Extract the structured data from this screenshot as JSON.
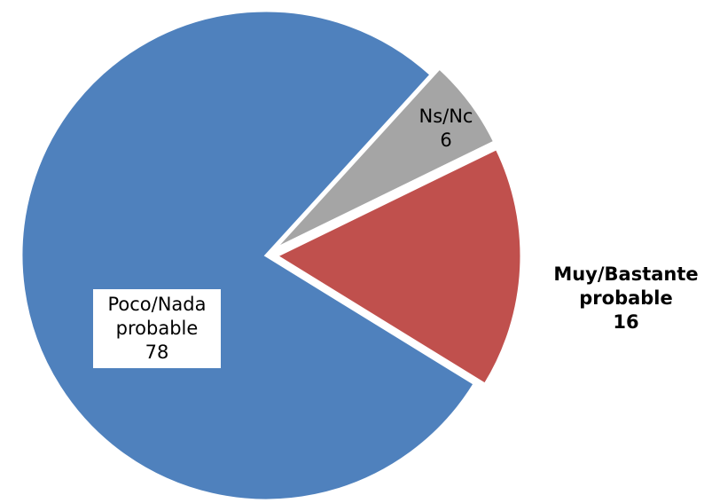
{
  "chart_data": {
    "type": "pie",
    "categories": [
      "Muy/Bastante probable",
      "Poco/Nada probable",
      "Ns/Nc"
    ],
    "values": [
      16,
      78,
      6
    ],
    "colors": [
      "#c0504d",
      "#4f81bd",
      "#a5a5a5"
    ]
  }
}
